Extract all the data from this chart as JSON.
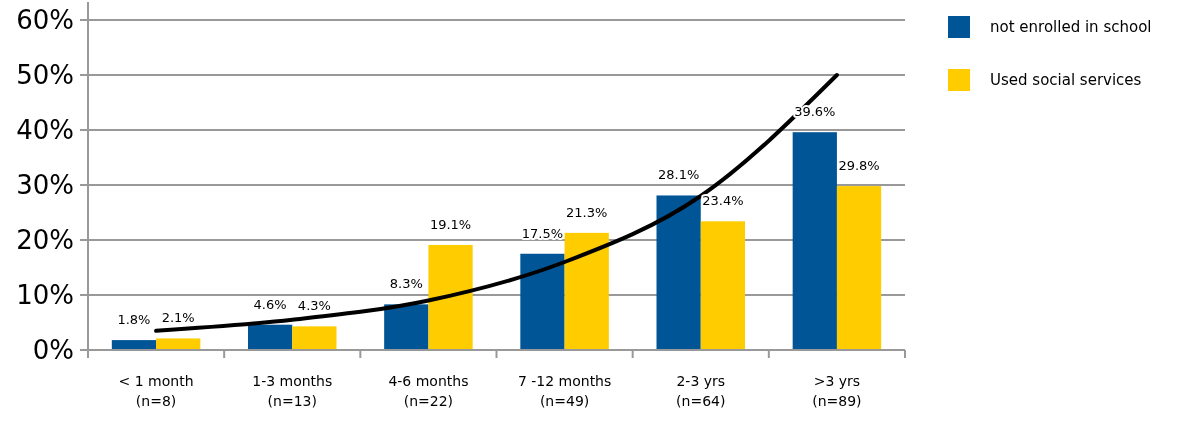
{
  "chart_data": {
    "type": "bar",
    "categories": [
      "< 1 month\n(n=8)",
      "1-3 months\n(n=13)",
      "4-6 months\n(n=22)",
      "7 -12 months\n(n=49)",
      "2-3 yrs\n(n=64)",
      ">3 yrs\n(n=89)"
    ],
    "series": [
      {
        "name": "not enrolled in school",
        "color": "#005596",
        "values": [
          1.8,
          4.6,
          8.3,
          17.5,
          28.1,
          39.6
        ],
        "value_labels": [
          "1.8%",
          "4.6%",
          "8.3%",
          "17.5%",
          "28.1%",
          "39.6%"
        ]
      },
      {
        "name": "Used social services",
        "color": "#ffcc00",
        "values": [
          2.1,
          4.3,
          19.1,
          21.3,
          23.4,
          29.8
        ],
        "value_labels": [
          "2.1%",
          "4.3%",
          "19.1%",
          "21.3%",
          "23.4%",
          "29.8%"
        ]
      },
      {
        "type": "line",
        "color": "#000000",
        "values": [
          3.5,
          5.5,
          9,
          16,
          28,
          50
        ]
      }
    ],
    "ylim": [
      0,
      60
    ],
    "yticks": [
      {
        "value": 0,
        "label": "0%"
      },
      {
        "value": 10,
        "label": "10%"
      },
      {
        "value": 20,
        "label": "20%"
      },
      {
        "value": 30,
        "label": "30%"
      },
      {
        "value": 40,
        "label": "40%"
      },
      {
        "value": 50,
        "label": "50%"
      },
      {
        "value": 60,
        "label": "60%"
      }
    ],
    "grid": "y",
    "legend": "top right",
    "marker": "none",
    "line_style": "solid"
  }
}
